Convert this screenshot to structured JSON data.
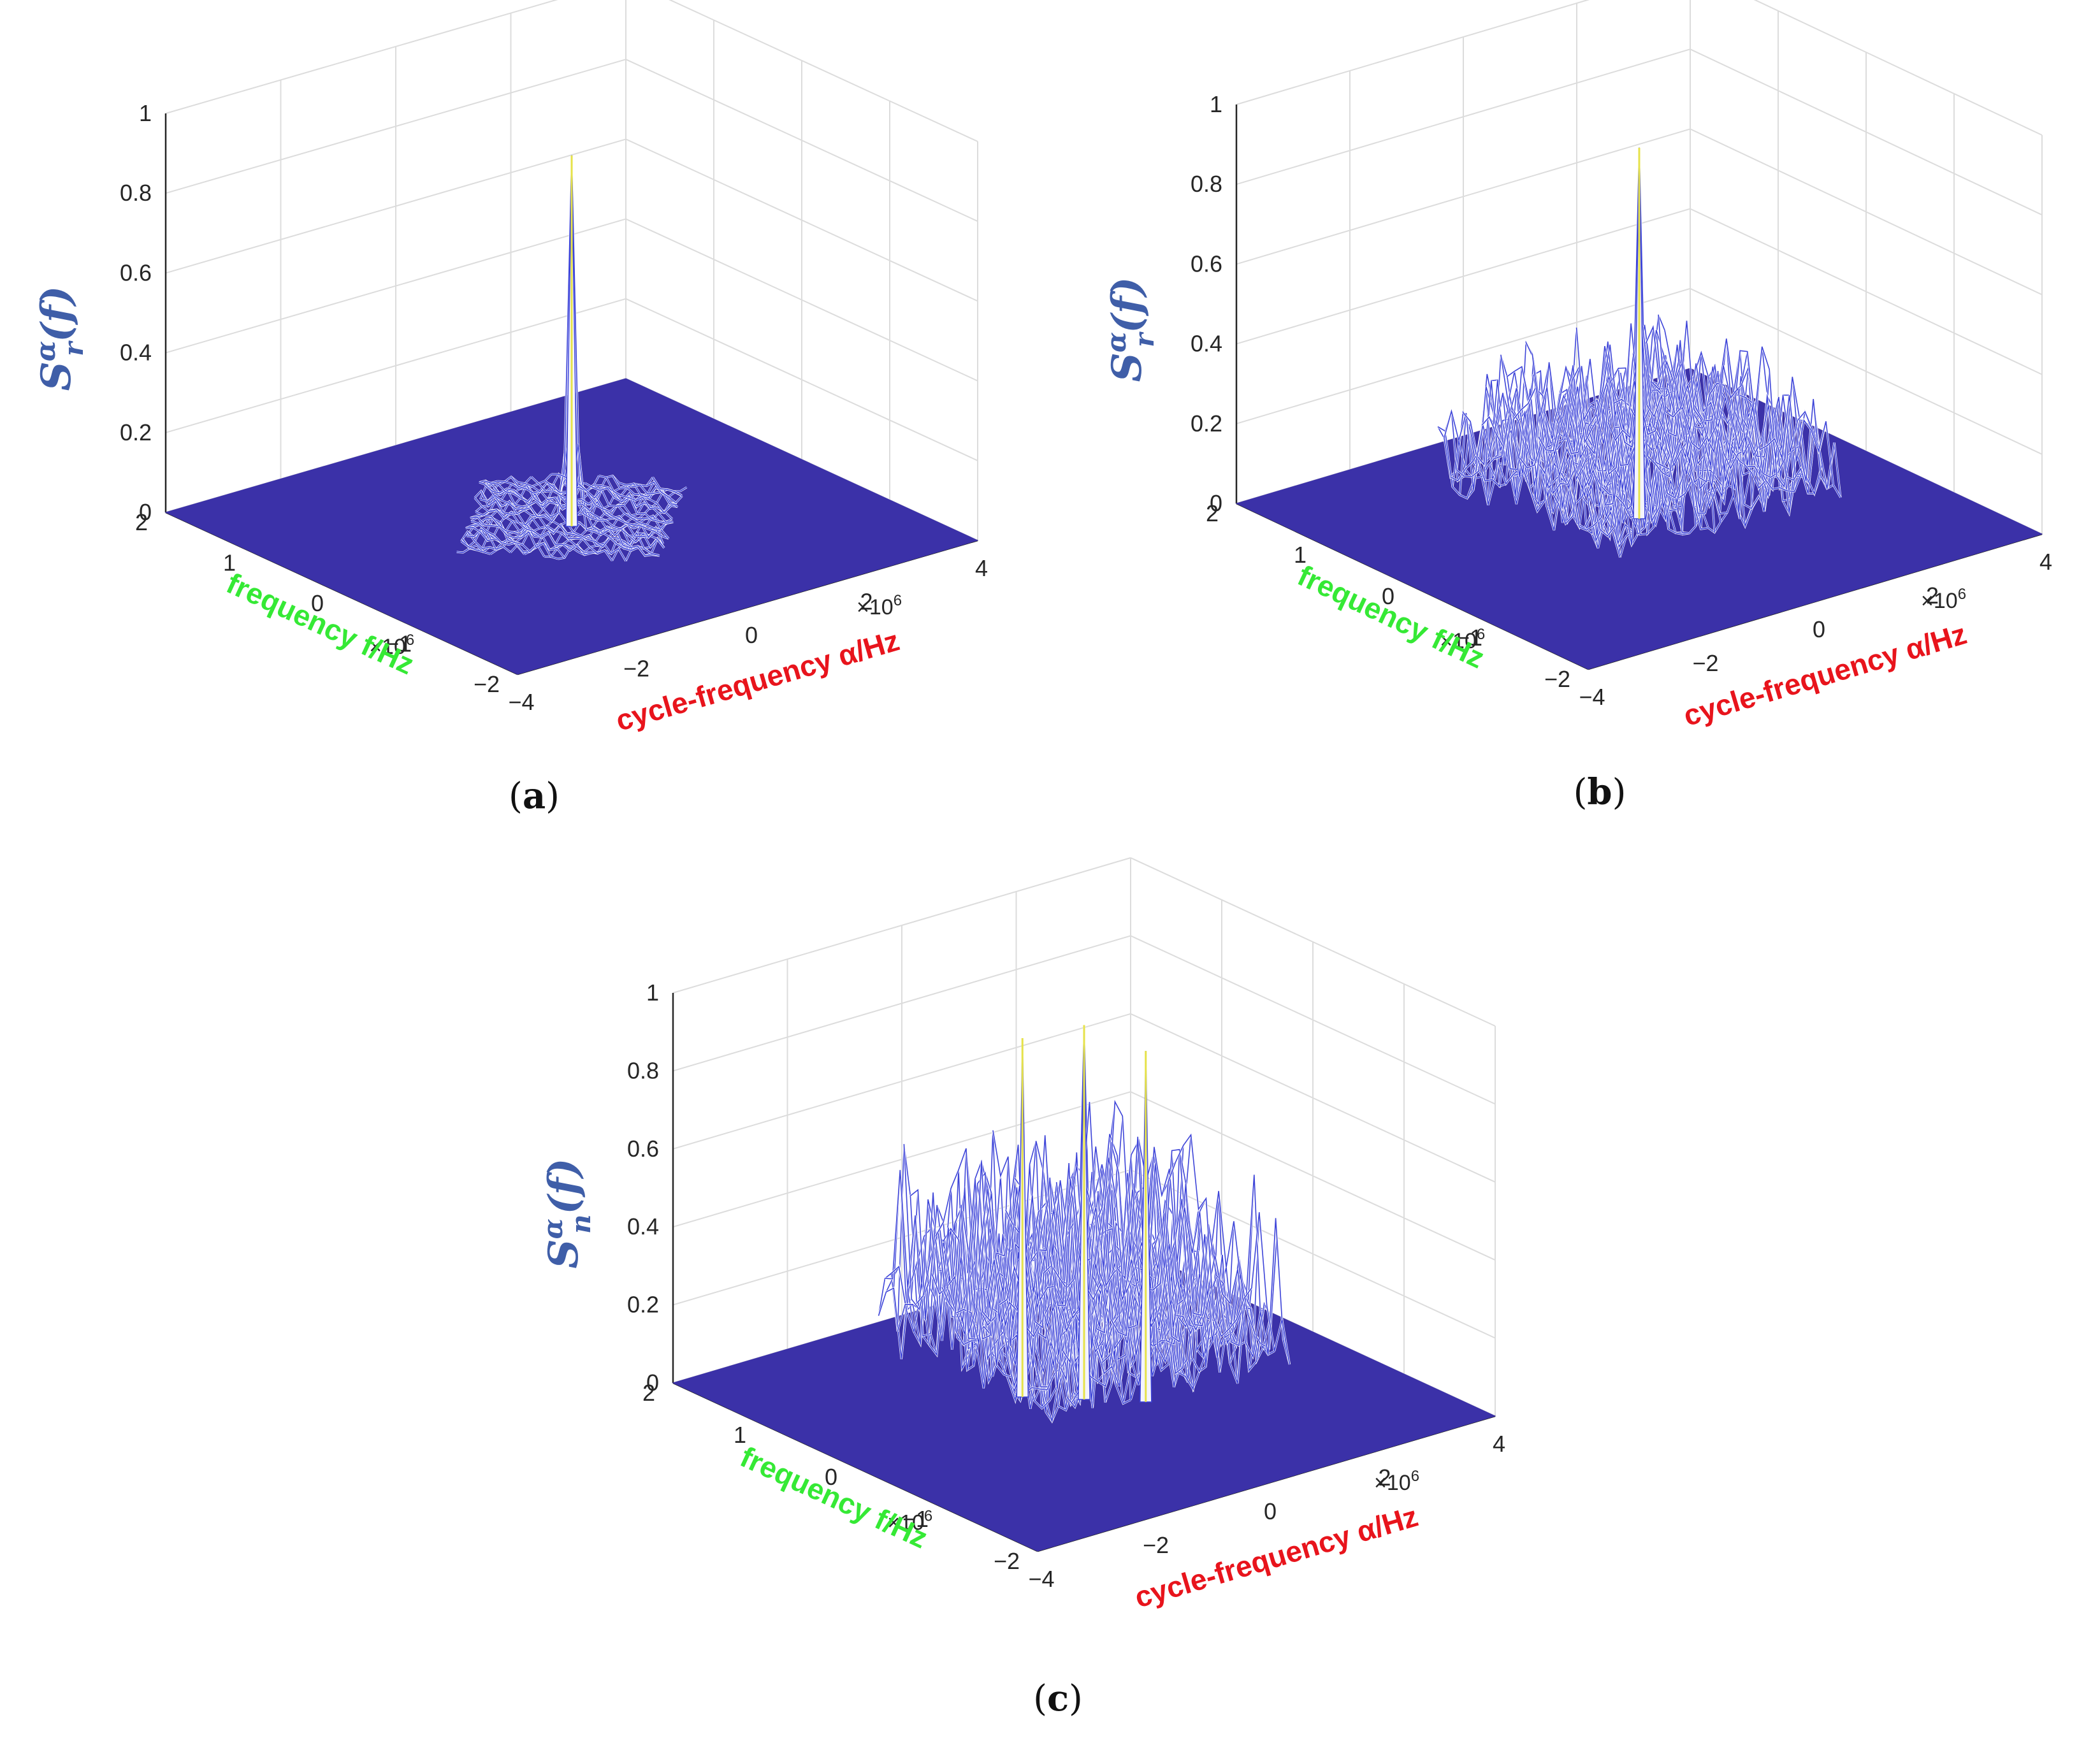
{
  "figure": {
    "domain": "Chart",
    "plot_color": "#3b31a8"
  },
  "chart_data": [
    {
      "id": "a",
      "type": "surface3d",
      "caption": "a",
      "zlabel": {
        "symbol": "S",
        "sup": "α",
        "sub": "r",
        "arg": "(f)"
      },
      "xlabel": "cycle-frequency α/Hz",
      "ylabel": "frequency f/Hz",
      "x_unit_exponent": "×10",
      "x_unit_power": "6",
      "y_unit_exponent": "×10",
      "y_unit_power": "6",
      "xlim": [
        -4,
        4
      ],
      "xticks": [
        "−4",
        "−2",
        "0",
        "2",
        "4"
      ],
      "ylim": [
        -2,
        2
      ],
      "yticks": [
        "−2",
        "−1",
        "0",
        "1",
        "2"
      ],
      "zlim": [
        0,
        1
      ],
      "zticks": [
        "0",
        "0.2",
        "0.4",
        "0.6",
        "0.8",
        "1"
      ],
      "grid": true,
      "support": {
        "shape": "diamond",
        "alpha_abs_max": 2,
        "f_abs_max": 1
      },
      "noise_level": 0.05,
      "peaks": [
        {
          "alpha": 0,
          "f": 0,
          "value": 0.93
        }
      ]
    },
    {
      "id": "b",
      "type": "surface3d",
      "caption": "b",
      "zlabel": {
        "symbol": "S",
        "sup": "α",
        "sub": "r",
        "arg": "(f)"
      },
      "xlabel": "cycle-frequency α/Hz",
      "ylabel": "frequency f/Hz",
      "x_unit_exponent": "×10",
      "x_unit_power": "6",
      "y_unit_exponent": "×10",
      "y_unit_power": "6",
      "xlim": [
        -4,
        4
      ],
      "xticks": [
        "−4",
        "−2",
        "0",
        "2",
        "4"
      ],
      "ylim": [
        -2,
        2
      ],
      "yticks": [
        "−2",
        "−1",
        "0",
        "1",
        "2"
      ],
      "zlim": [
        0,
        1
      ],
      "zticks": [
        "0",
        "0.2",
        "0.4",
        "0.6",
        "0.8",
        "1"
      ],
      "grid": true,
      "support": {
        "shape": "rectangle",
        "alpha_abs_max": 2,
        "f_abs_max": 1
      },
      "noise_level": 0.4,
      "peaks": [
        {
          "alpha": 0,
          "f": 0,
          "value": 0.93
        }
      ]
    },
    {
      "id": "c",
      "type": "surface3d",
      "caption": "c",
      "zlabel": {
        "symbol": "S",
        "sup": "α",
        "sub": "n",
        "arg": "(f)"
      },
      "xlabel": "cycle-frequency α/Hz",
      "ylabel": "frequency f/Hz",
      "x_unit_exponent": "×10",
      "x_unit_power": "6",
      "y_unit_exponent": "×10",
      "y_unit_power": "6",
      "xlim": [
        -4,
        4
      ],
      "xticks": [
        "−4",
        "−2",
        "0",
        "2",
        "4"
      ],
      "ylim": [
        -2,
        2
      ],
      "yticks": [
        "−2",
        "−1",
        "0",
        "1",
        "2"
      ],
      "zlim": [
        0,
        1
      ],
      "zticks": [
        "0",
        "0.2",
        "0.4",
        "0.6",
        "0.8",
        "1"
      ],
      "grid": true,
      "support": {
        "shape": "rectangle",
        "alpha_abs_max": 2,
        "f_abs_max": 1
      },
      "noise_level": 0.62,
      "peaks": [
        {
          "alpha": 0,
          "f": 0,
          "value": 0.96
        },
        {
          "alpha": -0.6,
          "f": 0.3,
          "value": 0.92
        },
        {
          "alpha": 0.6,
          "f": -0.3,
          "value": 0.9
        }
      ]
    }
  ]
}
